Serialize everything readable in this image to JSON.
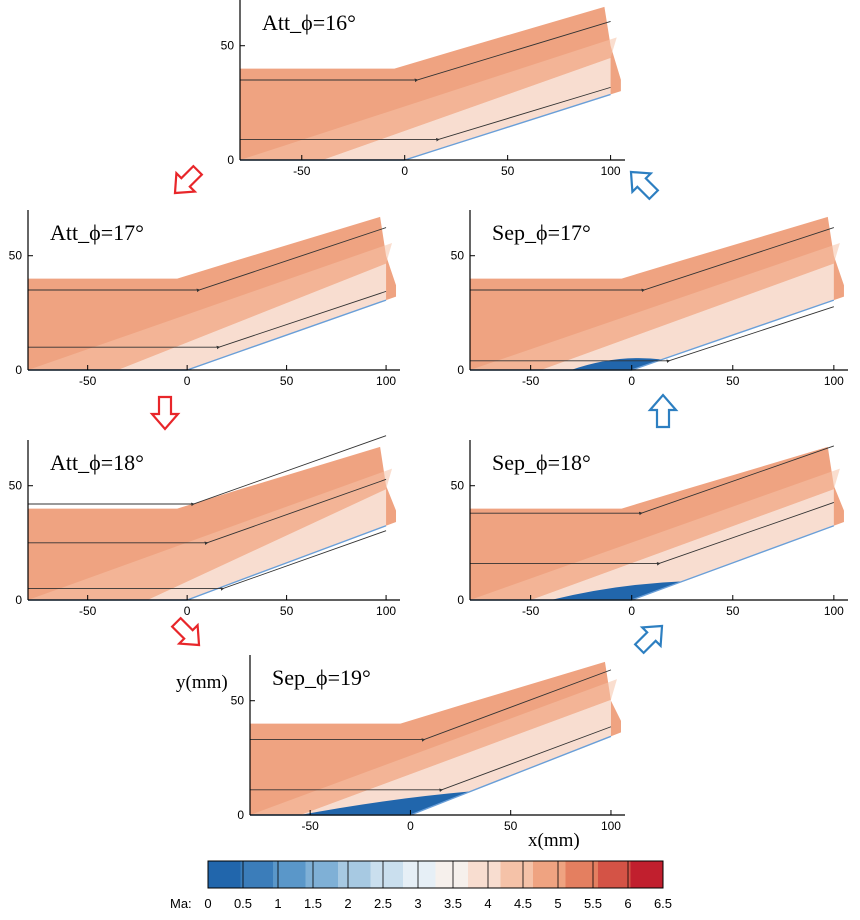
{
  "chart_data": {
    "type": "contour",
    "title": "",
    "xlabel": "x(mm)",
    "ylabel": "y(mm)",
    "xlim": [
      -80,
      107
    ],
    "ylim": [
      0,
      70
    ],
    "xticks": [
      "-50",
      "0",
      "50",
      "100"
    ],
    "xtick_values": [
      -50,
      0,
      50,
      100
    ],
    "yticks": [
      "0",
      "50"
    ],
    "ytick_values": [
      0,
      50
    ],
    "colorbar": {
      "label": "Ma:",
      "ticks": [
        "0",
        "0.5",
        "1",
        "1.5",
        "2",
        "2.5",
        "3",
        "3.5",
        "4",
        "4.5",
        "5",
        "5.5",
        "6",
        "6.5"
      ],
      "range": [
        0,
        6.5
      ],
      "colors": [
        "#2166ac",
        "#3b7dba",
        "#5a97c9",
        "#7fb0d6",
        "#a7c9e2",
        "#cadfee",
        "#e6eff6",
        "#f6f0ec",
        "#f8ddd0",
        "#f5c2a8",
        "#efa381",
        "#e47f60",
        "#d45346",
        "#c11f2e",
        "#b2182b"
      ]
    },
    "panels": [
      {
        "label": "Att_ϕ=16°",
        "state": "Attached",
        "angle_deg": 16,
        "shock_origin_x": -40,
        "separation_x": [
          0,
          0
        ],
        "streamline_y": [
          35,
          9
        ]
      },
      {
        "label": "Att_ϕ=17°",
        "state": "Attached",
        "angle_deg": 17,
        "shock_origin_x": -35,
        "separation_x": [
          0,
          0
        ],
        "streamline_y": [
          35,
          10
        ]
      },
      {
        "label": "Sep_ϕ=17°",
        "state": "Separated",
        "angle_deg": 17,
        "shock_origin_x": -45,
        "separation_x": [
          -30,
          15
        ],
        "streamline_y": [
          35,
          4
        ]
      },
      {
        "label": "Att_ϕ=18°",
        "state": "Attached",
        "angle_deg": 18,
        "shock_origin_x": -20,
        "separation_x": [
          0,
          0
        ],
        "streamline_y": [
          42,
          25,
          5
        ]
      },
      {
        "label": "Sep_ϕ=18°",
        "state": "Separated",
        "angle_deg": 18,
        "shock_origin_x": -50,
        "separation_x": [
          -40,
          25
        ],
        "streamline_y": [
          38,
          16
        ]
      },
      {
        "label": "Sep_ϕ=19°",
        "state": "Separated",
        "angle_deg": 19,
        "shock_origin_x": -55,
        "separation_x": [
          -55,
          30
        ],
        "streamline_y": [
          33,
          11
        ]
      }
    ],
    "transitions": [
      {
        "from": "Att_ϕ=16°",
        "to": "Att_ϕ=17°",
        "color": "red"
      },
      {
        "from": "Att_ϕ=17°",
        "to": "Att_ϕ=18°",
        "color": "red"
      },
      {
        "from": "Att_ϕ=18°",
        "to": "Sep_ϕ=19°",
        "color": "red"
      },
      {
        "from": "Sep_ϕ=19°",
        "to": "Sep_ϕ=18°",
        "color": "blue"
      },
      {
        "from": "Sep_ϕ=18°",
        "to": "Sep_ϕ=17°",
        "color": "blue"
      },
      {
        "from": "Sep_ϕ=17°",
        "to": "Att_ϕ=16°",
        "color": "blue"
      }
    ]
  }
}
